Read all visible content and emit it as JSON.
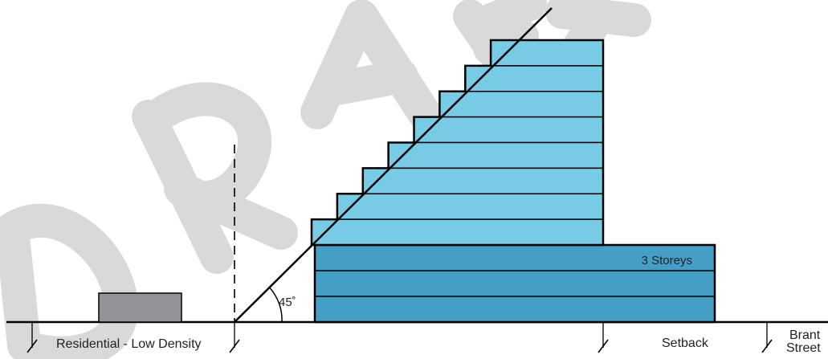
{
  "watermark": "DRAFT",
  "labels": {
    "podium": "3 Storeys",
    "angle": "45˚",
    "residential": "Residential - Low Density",
    "setback": "Setback",
    "street_line1": "Brant",
    "street_line2": "Street"
  },
  "colors": {
    "podium_fill": "#459ec5",
    "tower_fill": "#78cbe4",
    "house_fill": "#929497",
    "outline": "#000000",
    "watermark": "#d8d8d8"
  },
  "podium_storeys": 3,
  "tower_storeys": 8,
  "plane_angle_degrees": 45
}
